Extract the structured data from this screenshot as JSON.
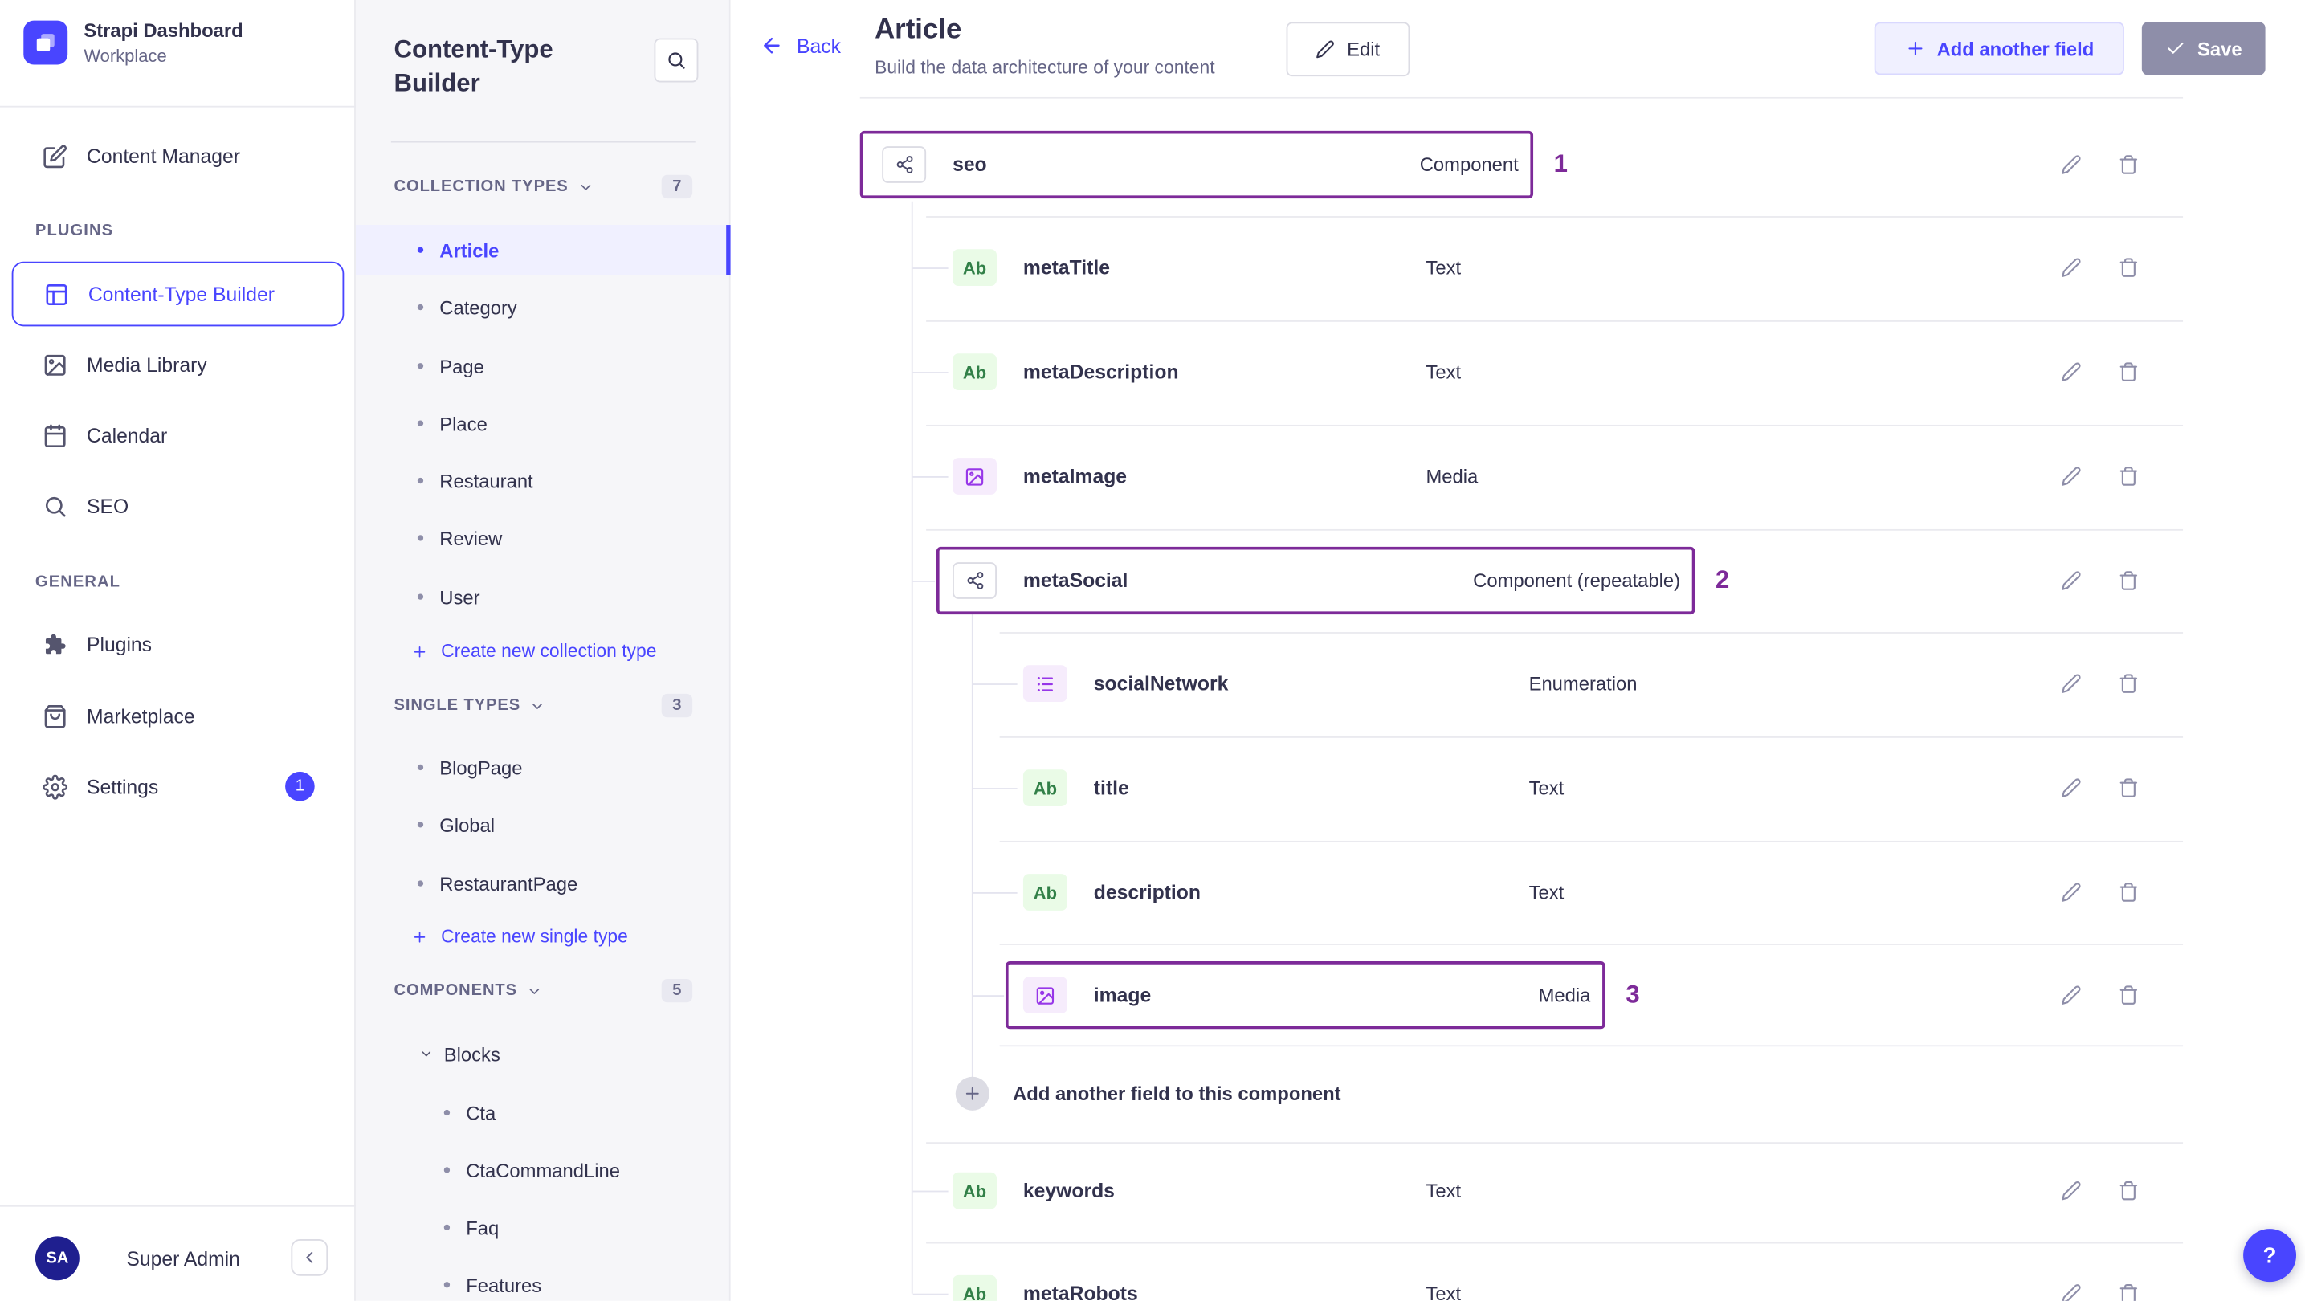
{
  "colors": {
    "primary": "#4945ff",
    "annotation": "#7d2a99"
  },
  "sidebar": {
    "brand_title": "Strapi Dashboard",
    "brand_subtitle": "Workplace",
    "content_manager": "Content Manager",
    "plugins_label": "PLUGINS",
    "plugins_items": [
      {
        "label": "Content-Type Builder",
        "active": true
      },
      {
        "label": "Media Library"
      },
      {
        "label": "Calendar"
      },
      {
        "label": "SEO"
      }
    ],
    "general_label": "GENERAL",
    "general_items": [
      {
        "label": "Plugins"
      },
      {
        "label": "Marketplace"
      },
      {
        "label": "Settings",
        "badge": "1"
      }
    ],
    "user_initials": "SA",
    "user_name": "Super Admin"
  },
  "typebuilder_panel": {
    "title": "Content-Type Builder",
    "sections": [
      {
        "label": "COLLECTION TYPES",
        "count": "7",
        "items": [
          {
            "label": "Article",
            "active": true
          },
          {
            "label": "Category"
          },
          {
            "label": "Page"
          },
          {
            "label": "Place"
          },
          {
            "label": "Restaurant"
          },
          {
            "label": "Review"
          },
          {
            "label": "User"
          }
        ],
        "action": "Create new collection type"
      },
      {
        "label": "SINGLE TYPES",
        "count": "3",
        "items": [
          {
            "label": "BlogPage"
          },
          {
            "label": "Global"
          },
          {
            "label": "RestaurantPage"
          }
        ],
        "action": "Create new single type"
      },
      {
        "label": "COMPONENTS",
        "count": "5",
        "groups": [
          {
            "label": "Blocks",
            "items": [
              "Cta",
              "CtaCommandLine",
              "Faq",
              "Features"
            ]
          }
        ]
      }
    ]
  },
  "header": {
    "back": "Back",
    "title": "Article",
    "subtitle": "Build the data architecture of your content",
    "edit": "Edit",
    "add_field": "Add another field",
    "save": "Save"
  },
  "fields_meta": {
    "text_badge": "Ab"
  },
  "fields": [
    {
      "name": "seo",
      "type": "Component",
      "icon": "component",
      "annotation": "1"
    },
    {
      "name": "metaTitle",
      "type": "Text",
      "icon": "text"
    },
    {
      "name": "metaDescription",
      "type": "Text",
      "icon": "text"
    },
    {
      "name": "metaImage",
      "type": "Media",
      "icon": "media"
    },
    {
      "name": "metaSocial",
      "type": "Component (repeatable)",
      "icon": "component",
      "annotation": "2"
    },
    {
      "name": "socialNetwork",
      "type": "Enumeration",
      "icon": "enumeration"
    },
    {
      "name": "title",
      "type": "Text",
      "icon": "text"
    },
    {
      "name": "description",
      "type": "Text",
      "icon": "text"
    },
    {
      "name": "image",
      "type": "Media",
      "icon": "media",
      "annotation": "3"
    },
    {
      "kind": "add-row",
      "label": "Add another field to this component"
    },
    {
      "name": "keywords",
      "type": "Text",
      "icon": "text"
    },
    {
      "name": "metaRobots",
      "type": "Text",
      "icon": "text"
    }
  ],
  "help_button": "?"
}
